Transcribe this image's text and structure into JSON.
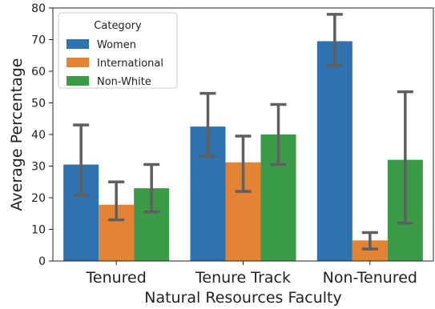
{
  "chart_data": {
    "type": "bar",
    "xlabel": "Natural Resources Faculty",
    "ylabel": "Average Percentage",
    "ylim": [
      0,
      80
    ],
    "yticks": [
      0,
      10,
      20,
      30,
      40,
      50,
      60,
      70,
      80
    ],
    "categories": [
      "Tenured",
      "Tenure Track",
      "Non-Tenured"
    ],
    "legend": {
      "title": "Category",
      "placement": "top-left"
    },
    "error_bars": true,
    "grid": false,
    "series": [
      {
        "name": "Women",
        "color": "#2f72b0",
        "values": [
          30.5,
          42.5,
          69.5
        ],
        "err_low": [
          20.8,
          33.2,
          61.8
        ],
        "err_high": [
          43.0,
          53.0,
          78.0
        ]
      },
      {
        "name": "International",
        "color": "#e58334",
        "values": [
          17.8,
          31.2,
          6.5
        ],
        "err_low": [
          13.0,
          22.0,
          3.8
        ],
        "err_high": [
          25.0,
          39.5,
          9.0
        ]
      },
      {
        "name": "Non-White",
        "color": "#3a9a48",
        "values": [
          23.0,
          40.0,
          32.0
        ],
        "err_low": [
          15.5,
          30.5,
          12.0
        ],
        "err_high": [
          30.5,
          49.5,
          53.5
        ]
      }
    ]
  }
}
